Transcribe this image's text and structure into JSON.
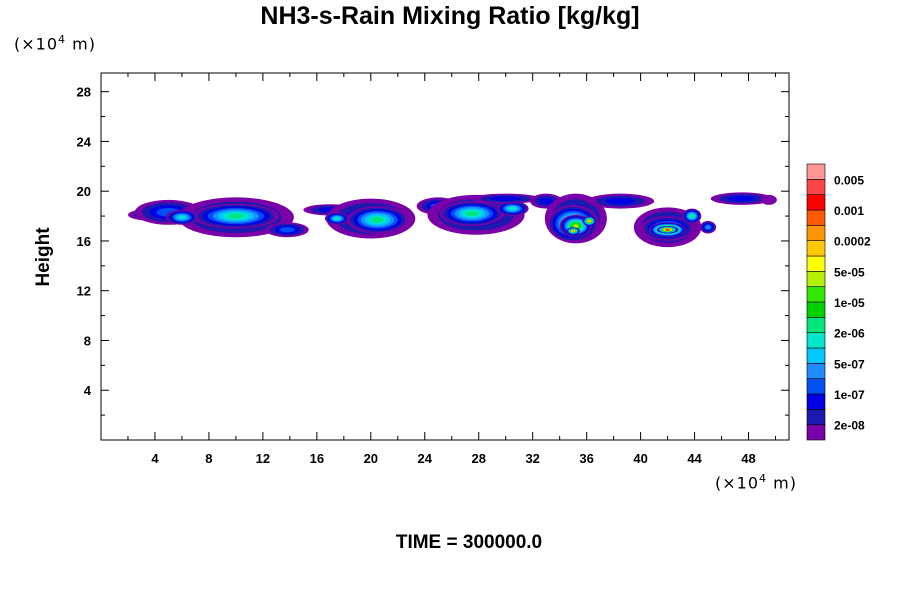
{
  "chart_data": {
    "type": "heatmap",
    "title": "NH3-s-Rain Mixing Ratio [kg/kg]",
    "ylabel": "Height",
    "x_unit": {
      "prefix": "(×10",
      "exp": "4",
      "suffix": " m)"
    },
    "y_unit": {
      "prefix": "(×10",
      "exp": "4",
      "suffix": " m)"
    },
    "footer": "TIME = 300000.0",
    "xlim": [
      0,
      51
    ],
    "ylim": [
      0,
      29.5
    ],
    "x_ticks": [
      4,
      8,
      12,
      16,
      20,
      24,
      28,
      32,
      36,
      40,
      44,
      48
    ],
    "y_ticks": [
      4,
      8,
      12,
      16,
      20,
      24,
      28
    ],
    "x_minor_step": 2,
    "y_minor_step": 2,
    "colorbar": {
      "colors": [
        "#7a00a8",
        "#1a1ab0",
        "#0000e6",
        "#0050f5",
        "#1e8cff",
        "#00c8ff",
        "#00e6c8",
        "#00e678",
        "#00d200",
        "#32e600",
        "#b4f000",
        "#ffff00",
        "#ffc800",
        "#ff9600",
        "#ff5a00",
        "#ff0000",
        "#ff4646",
        "#ff9696"
      ],
      "labels": [
        "2e-08",
        "1e-07",
        "5e-07",
        "2e-06",
        "1e-05",
        "5e-05",
        "0.0002",
        "0.001",
        "0.005"
      ]
    },
    "field_blobs": [
      {
        "x": 3.5,
        "y": 18.1,
        "rx": 1.5,
        "ry": 0.45,
        "level": 2
      },
      {
        "x": 5.0,
        "y": 18.3,
        "rx": 2.5,
        "ry": 1.0,
        "level": 3
      },
      {
        "x": 10.0,
        "y": 17.9,
        "rx": 4.3,
        "ry": 1.6,
        "level": 3
      },
      {
        "x": 10.0,
        "y": 18.0,
        "rx": 3.2,
        "ry": 1.0,
        "level": 7
      },
      {
        "x": 6.0,
        "y": 17.9,
        "rx": 1.2,
        "ry": 0.6,
        "level": 6
      },
      {
        "x": 13.8,
        "y": 16.9,
        "rx": 1.6,
        "ry": 0.6,
        "level": 3
      },
      {
        "x": 17.0,
        "y": 18.5,
        "rx": 2.0,
        "ry": 0.45,
        "level": 2
      },
      {
        "x": 20.0,
        "y": 17.8,
        "rx": 3.3,
        "ry": 1.6,
        "level": 3
      },
      {
        "x": 20.5,
        "y": 17.7,
        "rx": 2.3,
        "ry": 1.1,
        "level": 7
      },
      {
        "x": 17.5,
        "y": 17.8,
        "rx": 0.9,
        "ry": 0.5,
        "level": 6
      },
      {
        "x": 25.0,
        "y": 18.8,
        "rx": 1.6,
        "ry": 0.7,
        "level": 3
      },
      {
        "x": 27.8,
        "y": 18.1,
        "rx": 3.6,
        "ry": 1.6,
        "level": 3
      },
      {
        "x": 27.5,
        "y": 18.2,
        "rx": 2.4,
        "ry": 1.0,
        "level": 7
      },
      {
        "x": 30.5,
        "y": 18.6,
        "rx": 1.2,
        "ry": 0.6,
        "level": 6
      },
      {
        "x": 30.0,
        "y": 19.4,
        "rx": 2.6,
        "ry": 0.4,
        "level": 2
      },
      {
        "x": 33.0,
        "y": 19.2,
        "rx": 1.2,
        "ry": 0.6,
        "level": 2
      },
      {
        "x": 35.2,
        "y": 17.8,
        "rx": 2.3,
        "ry": 2.0,
        "level": 3
      },
      {
        "x": 35.0,
        "y": 17.4,
        "rx": 1.9,
        "ry": 1.5,
        "level": 8
      },
      {
        "x": 35.2,
        "y": 17.2,
        "rx": 1.2,
        "ry": 0.9,
        "level": 10
      },
      {
        "x": 35.0,
        "y": 16.8,
        "rx": 0.5,
        "ry": 0.3,
        "level": 13
      },
      {
        "x": 36.2,
        "y": 17.6,
        "rx": 0.5,
        "ry": 0.4,
        "level": 13
      },
      {
        "x": 38.5,
        "y": 19.2,
        "rx": 2.5,
        "ry": 0.6,
        "level": 2
      },
      {
        "x": 42.0,
        "y": 17.1,
        "rx": 2.5,
        "ry": 1.6,
        "level": 3
      },
      {
        "x": 42.0,
        "y": 17.0,
        "rx": 2.0,
        "ry": 1.0,
        "level": 6
      },
      {
        "x": 42.0,
        "y": 16.9,
        "rx": 1.4,
        "ry": 0.6,
        "level": 14
      },
      {
        "x": 42.0,
        "y": 16.9,
        "rx": 0.8,
        "ry": 0.3,
        "level": 16
      },
      {
        "x": 43.8,
        "y": 18.0,
        "rx": 0.7,
        "ry": 0.6,
        "level": 7
      },
      {
        "x": 45.0,
        "y": 17.1,
        "rx": 0.6,
        "ry": 0.5,
        "level": 4
      },
      {
        "x": 47.5,
        "y": 19.4,
        "rx": 2.3,
        "ry": 0.5,
        "level": 2
      },
      {
        "x": 49.5,
        "y": 19.3,
        "rx": 0.6,
        "ry": 0.4,
        "level": 0
      }
    ]
  }
}
